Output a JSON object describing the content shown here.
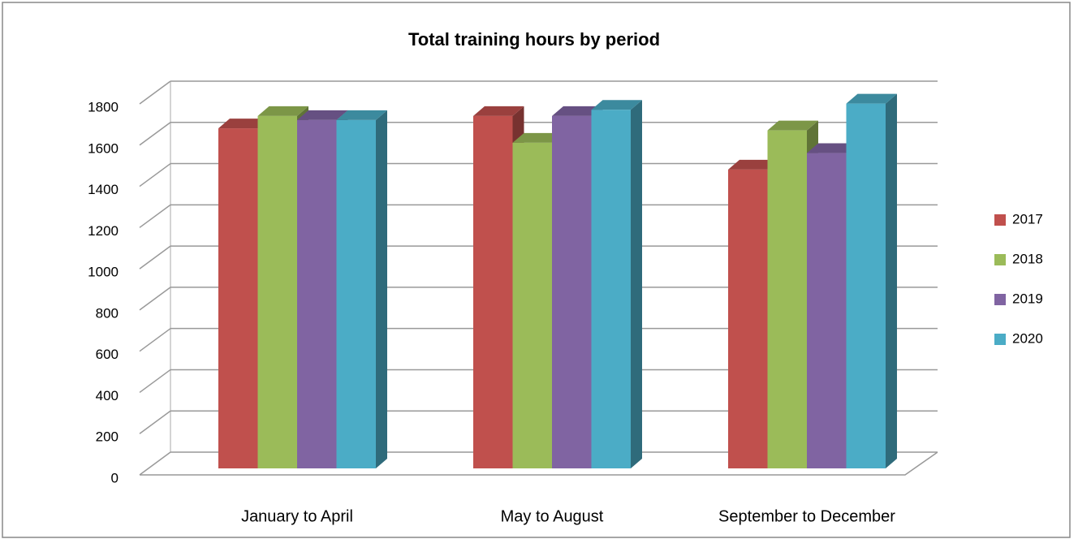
{
  "chart_data": {
    "type": "bar3d",
    "title": "Total training hours by period",
    "categories": [
      "January to April",
      "May to  August",
      "September to December"
    ],
    "series": [
      {
        "name": "2017",
        "color": "#c0504d",
        "values": [
          1650,
          1710,
          1450
        ]
      },
      {
        "name": "2018",
        "color": "#9bbb59",
        "values": [
          1710,
          1580,
          1640
        ]
      },
      {
        "name": "2019",
        "color": "#8064a2",
        "values": [
          1690,
          1710,
          1530
        ]
      },
      {
        "name": "2020",
        "color": "#4bacc6",
        "values": [
          1690,
          1740,
          1770
        ]
      }
    ],
    "ylim": [
      0,
      1800
    ],
    "yticks": [
      0,
      200,
      400,
      600,
      800,
      1000,
      1200,
      1400,
      1600,
      1800
    ],
    "grid": true,
    "legend": "right"
  }
}
